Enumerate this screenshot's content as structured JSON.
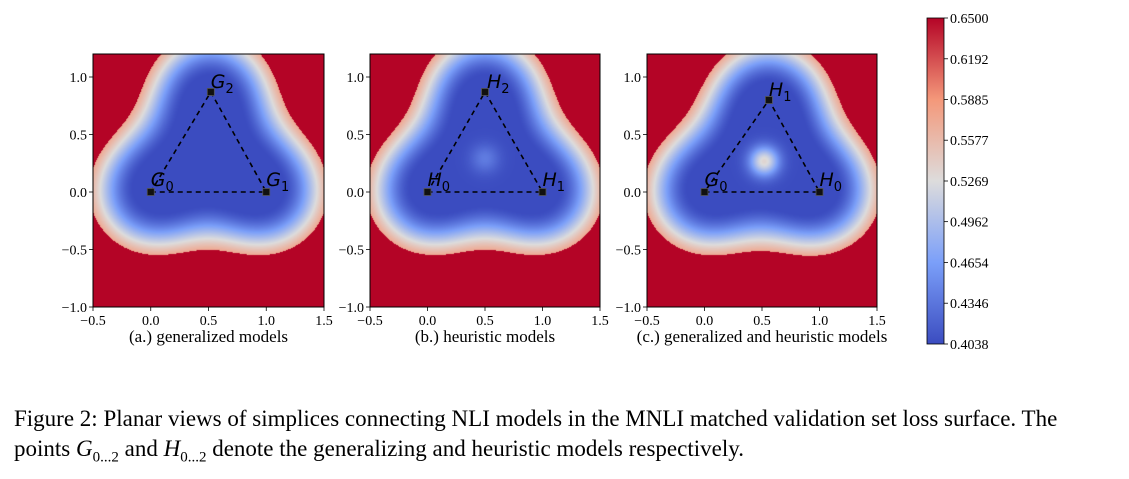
{
  "chart_data": [
    {
      "type": "heatmap",
      "label": "(a.) generalized models",
      "xlim": [
        -0.5,
        1.5
      ],
      "ylim": [
        -1.0,
        1.2
      ],
      "xticks": [
        "−0.5",
        "0.0",
        "0.5",
        "1.0",
        "1.5"
      ],
      "yticks": [
        "−1.0",
        "−0.5",
        "0.0",
        "0.5",
        "1.0"
      ],
      "vertices": [
        {
          "name": "G",
          "sub": "0",
          "x": 0.0,
          "y": 0.0
        },
        {
          "name": "G",
          "sub": "1",
          "x": 1.0,
          "y": 0.0
        },
        {
          "name": "G",
          "sub": "2",
          "x": 0.52,
          "y": 0.87
        }
      ],
      "features": {
        "center_bump": 0.0
      }
    },
    {
      "type": "heatmap",
      "label": "(b.) heuristic models",
      "xlim": [
        -0.5,
        1.5
      ],
      "ylim": [
        -1.0,
        1.2
      ],
      "xticks": [
        "−0.5",
        "0.0",
        "0.5",
        "1.0",
        "1.5"
      ],
      "yticks": [
        "−1.0",
        "−0.5",
        "0.0",
        "0.5",
        "1.0"
      ],
      "vertices": [
        {
          "name": "H",
          "sub": "0",
          "x": 0.0,
          "y": 0.0
        },
        {
          "name": "H",
          "sub": "1",
          "x": 1.0,
          "y": 0.0
        },
        {
          "name": "H",
          "sub": "2",
          "x": 0.5,
          "y": 0.87
        }
      ],
      "features": {
        "center_bump": 0.06
      }
    },
    {
      "type": "heatmap",
      "label": "(c.) generalized and heuristic models",
      "xlim": [
        -0.5,
        1.5
      ],
      "ylim": [
        -1.0,
        1.2
      ],
      "xticks": [
        "−0.5",
        "0.0",
        "0.5",
        "1.0",
        "1.5"
      ],
      "yticks": [
        "−1.0",
        "−0.5",
        "0.0",
        "0.5",
        "1.0"
      ],
      "vertices": [
        {
          "name": "G",
          "sub": "0",
          "x": 0.0,
          "y": 0.0
        },
        {
          "name": "H",
          "sub": "0",
          "x": 1.0,
          "y": 0.0
        },
        {
          "name": "H",
          "sub": "1",
          "x": 0.56,
          "y": 0.8
        }
      ],
      "features": {
        "center_bump": 0.22
      }
    }
  ],
  "colorbar": {
    "min": 0.4038,
    "max": 0.65,
    "ticks": [
      "0.6500",
      "0.6192",
      "0.5885",
      "0.5577",
      "0.5269",
      "0.4962",
      "0.4654",
      "0.4346",
      "0.4038"
    ]
  },
  "caption": {
    "prefix": "Figure 2: Planar views of simplices connecting NLI models in the MNLI matched validation set loss surface. The points ",
    "g_sym": "G",
    "g_sub": "0...2",
    "mid": " and ",
    "h_sym": "H",
    "h_sub": "0...2",
    "suffix": " denote the generalizing and heuristic models respectively."
  }
}
